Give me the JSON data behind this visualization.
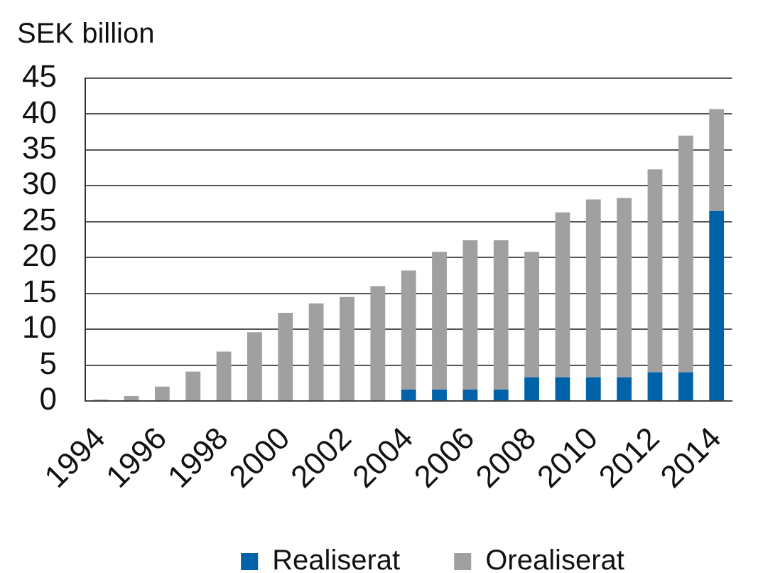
{
  "chart_data": {
    "type": "bar",
    "ylabel": "SEK billion",
    "categories": [
      "1994",
      null,
      "1996",
      null,
      "1998",
      null,
      "2000",
      null,
      "2002",
      null,
      "2004",
      null,
      "2006",
      null,
      "2008",
      null,
      "2010",
      null,
      "2012",
      null,
      "2014"
    ],
    "series": [
      {
        "name": "Realiserat",
        "color": "#0062a8",
        "values": [
          0,
          0,
          0,
          0,
          0,
          0,
          0,
          0.1,
          0.1,
          0.1,
          1.6,
          1.6,
          1.6,
          1.6,
          3.3,
          3.3,
          3.3,
          3.3,
          4.0,
          4.0,
          26.5
        ]
      },
      {
        "name": "Orealiserat",
        "color": "#a0a0a0",
        "values": [
          0.2,
          0.7,
          2.0,
          4.1,
          6.9,
          9.6,
          12.3,
          13.5,
          14.4,
          15.9,
          16.6,
          19.2,
          20.8,
          20.8,
          17.5,
          23.0,
          24.8,
          25.0,
          28.3,
          33.0,
          14.2
        ]
      }
    ],
    "stacked": true,
    "ylim": [
      0,
      45
    ],
    "yticks": [
      0,
      5,
      10,
      15,
      20,
      25,
      30,
      35,
      40,
      45
    ],
    "grid": "y",
    "legend": "bottom"
  }
}
